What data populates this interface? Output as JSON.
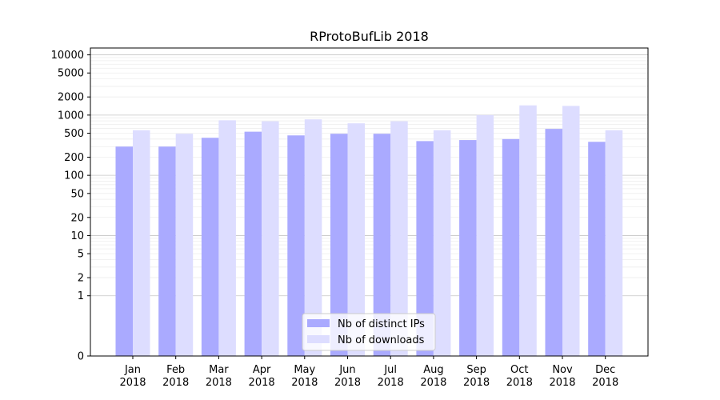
{
  "chart_data": {
    "type": "bar",
    "title": "RProtoBufLib 2018",
    "categories": [
      "Jan\n2018",
      "Feb\n2018",
      "Mar\n2018",
      "Apr\n2018",
      "May\n2018",
      "Jun\n2018",
      "Jul\n2018",
      "Aug\n2018",
      "Sep\n2018",
      "Oct\n2018",
      "Nov\n2018",
      "Dec\n2018"
    ],
    "series": [
      {
        "name": "Nb of distinct IPs",
        "color": "#aaaaff",
        "values": [
          300,
          300,
          420,
          530,
          460,
          490,
          490,
          370,
          385,
          400,
          590,
          360
        ]
      },
      {
        "name": "Nb of downloads",
        "color": "#ddddff",
        "values": [
          560,
          490,
          820,
          790,
          850,
          730,
          790,
          560,
          1000,
          1450,
          1420,
          560
        ]
      }
    ],
    "y_scale": "symlog",
    "y_ticks": [
      "0",
      "1",
      "2",
      "5",
      "10",
      "20",
      "50",
      "100",
      "200",
      "500",
      "1000",
      "2000",
      "5000",
      "10000"
    ],
    "ylim": [
      0,
      13000
    ],
    "legend_position": "bottom-center",
    "grid": true
  }
}
